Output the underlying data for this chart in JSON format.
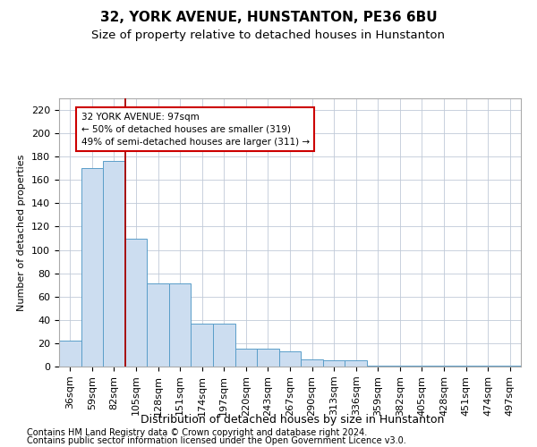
{
  "title1": "32, YORK AVENUE, HUNSTANTON, PE36 6BU",
  "title2": "Size of property relative to detached houses in Hunstanton",
  "xlabel": "Distribution of detached houses by size in Hunstanton",
  "ylabel": "Number of detached properties",
  "categories": [
    "36sqm",
    "59sqm",
    "82sqm",
    "105sqm",
    "128sqm",
    "151sqm",
    "174sqm",
    "197sqm",
    "220sqm",
    "243sqm",
    "267sqm",
    "290sqm",
    "313sqm",
    "336sqm",
    "359sqm",
    "382sqm",
    "405sqm",
    "428sqm",
    "451sqm",
    "474sqm",
    "497sqm"
  ],
  "values": [
    22,
    170,
    176,
    110,
    71,
    71,
    37,
    37,
    15,
    15,
    13,
    6,
    5,
    5,
    1,
    1,
    1,
    1,
    1,
    1,
    1
  ],
  "bar_color": "#ccddf0",
  "bar_edge_color": "#5a9ec9",
  "vline_color": "#aa0000",
  "annotation_text": "32 YORK AVENUE: 97sqm\n← 50% of detached houses are smaller (319)\n49% of semi-detached houses are larger (311) →",
  "annotation_box_color": "#ffffff",
  "annotation_box_edge": "#cc0000",
  "ylim": [
    0,
    230
  ],
  "yticks": [
    0,
    20,
    40,
    60,
    80,
    100,
    120,
    140,
    160,
    180,
    200,
    220
  ],
  "footer1": "Contains HM Land Registry data © Crown copyright and database right 2024.",
  "footer2": "Contains public sector information licensed under the Open Government Licence v3.0.",
  "bg_color": "#ffffff",
  "grid_color": "#c0cad8",
  "title1_fontsize": 11,
  "title2_fontsize": 9.5,
  "xlabel_fontsize": 9,
  "ylabel_fontsize": 8,
  "tick_fontsize": 8,
  "footer_fontsize": 7
}
